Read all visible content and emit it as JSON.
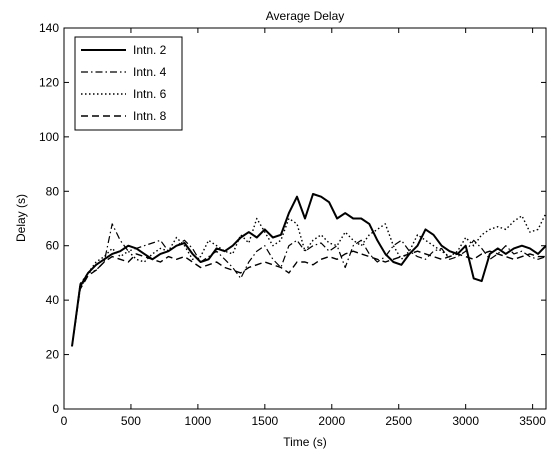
{
  "chart_data": {
    "type": "line",
    "title": "Average Delay",
    "xlabel": "Time (s)",
    "ylabel": "Delay (s)",
    "xlim": [
      0,
      3600
    ],
    "ylim": [
      0,
      140
    ],
    "xticks": [
      0,
      500,
      1000,
      1500,
      2000,
      2500,
      3000,
      3500
    ],
    "yticks": [
      0,
      20,
      40,
      60,
      80,
      100,
      120,
      140
    ],
    "grid": false,
    "legend_position": "top-left",
    "series": [
      {
        "name": "Intn. 2",
        "style": "solid",
        "x": [
          60,
          120,
          180,
          240,
          300,
          360,
          420,
          480,
          540,
          600,
          660,
          720,
          780,
          840,
          900,
          960,
          1020,
          1080,
          1140,
          1200,
          1260,
          1320,
          1380,
          1440,
          1500,
          1560,
          1620,
          1680,
          1740,
          1800,
          1860,
          1920,
          1980,
          2040,
          2100,
          2160,
          2220,
          2280,
          2340,
          2400,
          2460,
          2520,
          2580,
          2640,
          2700,
          2760,
          2820,
          2880,
          2940,
          3000,
          3060,
          3120,
          3180,
          3240,
          3300,
          3360,
          3420,
          3480,
          3540,
          3600
        ],
        "y": [
          23,
          45,
          50,
          53,
          55,
          57,
          58,
          60,
          59,
          57,
          55,
          57,
          58,
          60,
          61,
          57,
          54,
          55,
          59,
          58,
          60,
          63,
          65,
          63,
          66,
          63,
          64,
          72,
          78,
          70,
          79,
          78,
          76,
          70,
          72,
          70,
          70,
          68,
          62,
          57,
          54,
          53,
          57,
          60,
          66,
          64,
          60,
          58,
          57,
          60,
          48,
          47,
          57,
          59,
          57,
          59,
          60,
          59,
          57,
          60
        ]
      },
      {
        "name": "Intn. 4",
        "style": "dashdot",
        "x": [
          60,
          120,
          180,
          240,
          300,
          360,
          420,
          480,
          540,
          600,
          660,
          720,
          780,
          840,
          900,
          960,
          1020,
          1080,
          1140,
          1200,
          1260,
          1320,
          1380,
          1440,
          1500,
          1560,
          1620,
          1680,
          1740,
          1800,
          1860,
          1920,
          1980,
          2040,
          2100,
          2160,
          2220,
          2280,
          2340,
          2400,
          2460,
          2520,
          2580,
          2640,
          2700,
          2760,
          2820,
          2880,
          2940,
          3000,
          3060,
          3120,
          3180,
          3240,
          3300,
          3360,
          3420,
          3480,
          3540,
          3600
        ],
        "y": [
          23,
          46,
          50,
          51,
          54,
          68,
          62,
          58,
          59,
          60,
          61,
          62,
          58,
          60,
          62,
          59,
          54,
          56,
          58,
          55,
          52,
          48,
          54,
          58,
          60,
          55,
          52,
          60,
          62,
          58,
          60,
          61,
          58,
          60,
          52,
          60,
          62,
          57,
          54,
          56,
          60,
          62,
          58,
          56,
          55,
          58,
          59,
          55,
          56,
          58,
          62,
          59,
          55,
          57,
          60,
          57,
          58,
          56,
          55,
          56
        ]
      },
      {
        "name": "Intn. 6",
        "style": "dotted",
        "x": [
          60,
          120,
          180,
          240,
          300,
          360,
          420,
          480,
          540,
          600,
          660,
          720,
          780,
          840,
          900,
          960,
          1020,
          1080,
          1140,
          1200,
          1260,
          1320,
          1380,
          1440,
          1500,
          1560,
          1620,
          1680,
          1740,
          1800,
          1860,
          1920,
          1980,
          2040,
          2100,
          2160,
          2220,
          2280,
          2340,
          2400,
          2460,
          2520,
          2580,
          2640,
          2700,
          2760,
          2820,
          2880,
          2940,
          3000,
          3060,
          3120,
          3180,
          3240,
          3300,
          3360,
          3420,
          3480,
          3540,
          3600
        ],
        "y": [
          23,
          44,
          50,
          54,
          56,
          59,
          56,
          58,
          55,
          54,
          57,
          59,
          58,
          63,
          60,
          55,
          56,
          62,
          60,
          58,
          57,
          64,
          61,
          70,
          65,
          60,
          62,
          70,
          68,
          58,
          62,
          64,
          61,
          60,
          65,
          62,
          60,
          64,
          66,
          68,
          60,
          55,
          58,
          64,
          62,
          60,
          58,
          56,
          58,
          63,
          60,
          64,
          66,
          67,
          66,
          69,
          71,
          65,
          66,
          72
        ]
      },
      {
        "name": "Intn. 8",
        "style": "dashed",
        "x": [
          60,
          120,
          180,
          240,
          300,
          360,
          420,
          480,
          540,
          600,
          660,
          720,
          780,
          840,
          900,
          960,
          1020,
          1080,
          1140,
          1200,
          1260,
          1320,
          1380,
          1440,
          1500,
          1560,
          1620,
          1680,
          1740,
          1800,
          1860,
          1920,
          1980,
          2040,
          2100,
          2160,
          2220,
          2280,
          2340,
          2400,
          2460,
          2520,
          2580,
          2640,
          2700,
          2760,
          2820,
          2880,
          2940,
          3000,
          3060,
          3120,
          3180,
          3240,
          3300,
          3360,
          3420,
          3480,
          3540,
          3600
        ],
        "y": [
          23,
          44,
          49,
          51,
          54,
          56,
          55,
          54,
          57,
          56,
          55,
          54,
          56,
          55,
          56,
          54,
          52,
          53,
          54,
          52,
          51,
          50,
          52,
          53,
          54,
          53,
          52,
          50,
          54,
          54,
          53,
          55,
          56,
          55,
          57,
          58,
          57,
          56,
          55,
          54,
          55,
          56,
          57,
          58,
          57,
          56,
          55,
          56,
          57,
          56,
          55,
          57,
          58,
          57,
          56,
          55,
          56,
          57,
          56,
          56
        ]
      }
    ]
  }
}
